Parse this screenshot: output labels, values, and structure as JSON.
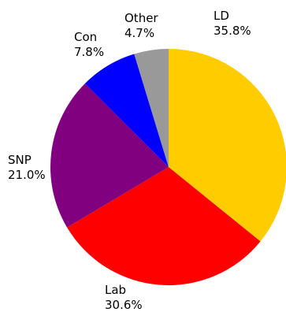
{
  "chart_data": {
    "type": "pie",
    "start_angle_deg": 0,
    "direction": "clockwise",
    "slices": [
      {
        "label": "LD",
        "value": 35.8,
        "value_label": "35.8%",
        "color": "#FFCC00"
      },
      {
        "label": "Lab",
        "value": 30.6,
        "value_label": "30.6%",
        "color": "#FF0000"
      },
      {
        "label": "SNP",
        "value": 21.0,
        "value_label": "21.0%",
        "color": "#800080"
      },
      {
        "label": "Con",
        "value": 7.8,
        "value_label": "7.8%",
        "color": "#0000FF"
      },
      {
        "label": "Other",
        "value": 4.7,
        "value_label": "4.7%",
        "color": "#999999"
      }
    ]
  }
}
